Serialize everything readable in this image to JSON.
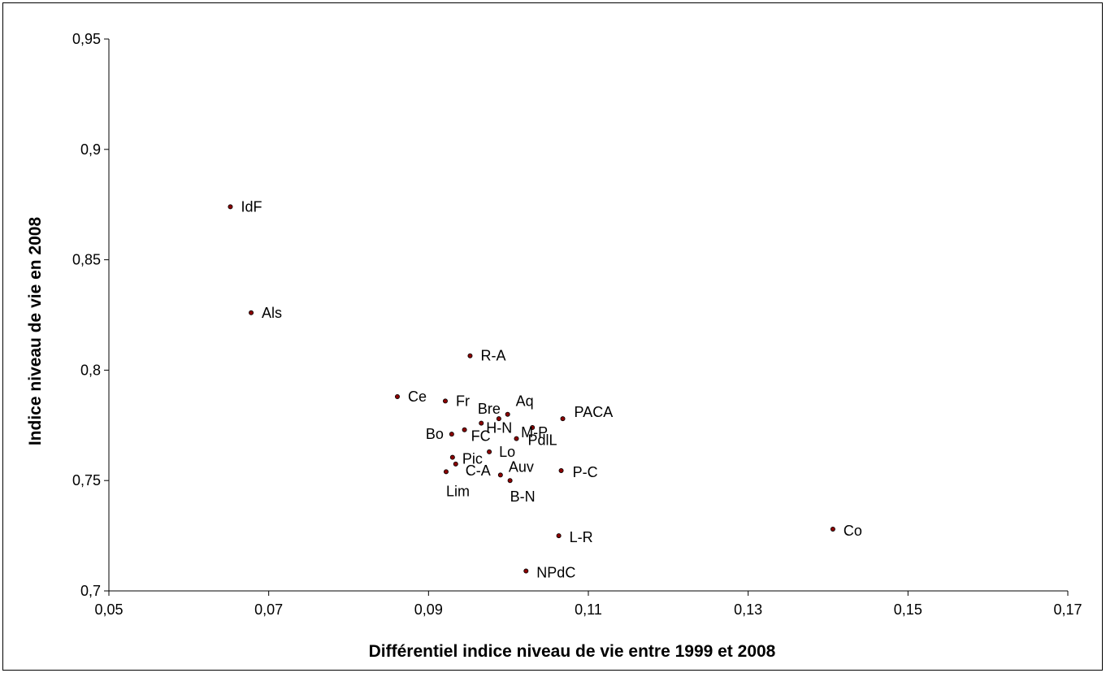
{
  "chart_data": {
    "type": "scatter",
    "title": "",
    "xlabel": "Différentiel indice niveau de vie entre 1999 et 2008",
    "ylabel": "Indice niveau de vie en 2008",
    "xlim": [
      0.05,
      0.17
    ],
    "ylim": [
      0.7,
      0.95
    ],
    "x_ticks": [
      0.05,
      0.07,
      0.09,
      0.11,
      0.13,
      0.15,
      0.17
    ],
    "x_tick_labels": [
      "0,05",
      "0,07",
      "0,09",
      "0,11",
      "0,13",
      "0,15",
      "0,17"
    ],
    "y_ticks": [
      0.7,
      0.75,
      0.8,
      0.85,
      0.9,
      0.95
    ],
    "y_tick_labels": [
      "0,7",
      "0,75",
      "0,8",
      "0,85",
      "0,9",
      "0,95"
    ],
    "grid": false,
    "legend": "none",
    "marker_color": "#8b0000",
    "points": [
      {
        "label": "IdF",
        "x": 0.0652,
        "y": 0.874
      },
      {
        "label": "Als",
        "x": 0.0678,
        "y": 0.826
      },
      {
        "label": "R-A",
        "x": 0.0952,
        "y": 0.8065
      },
      {
        "label": "Ce",
        "x": 0.0861,
        "y": 0.788
      },
      {
        "label": "Fr",
        "x": 0.0921,
        "y": 0.786
      },
      {
        "label": "Aq",
        "x": 0.0999,
        "y": 0.78
      },
      {
        "label": "Bre",
        "x": 0.0988,
        "y": 0.778
      },
      {
        "label": "PACA",
        "x": 0.1068,
        "y": 0.778
      },
      {
        "label": "H-N",
        "x": 0.0966,
        "y": 0.776
      },
      {
        "label": "M-P",
        "x": 0.103,
        "y": 0.774
      },
      {
        "label": "FC",
        "x": 0.0945,
        "y": 0.773
      },
      {
        "label": "Bo",
        "x": 0.0929,
        "y": 0.771
      },
      {
        "label": "PdlL",
        "x": 0.101,
        "y": 0.769
      },
      {
        "label": "Lo",
        "x": 0.0976,
        "y": 0.763
      },
      {
        "label": "Pic",
        "x": 0.093,
        "y": 0.7605
      },
      {
        "label": "C-A",
        "x": 0.0934,
        "y": 0.7575
      },
      {
        "label": "P-C",
        "x": 0.1066,
        "y": 0.7545
      },
      {
        "label": "Lim",
        "x": 0.0922,
        "y": 0.754
      },
      {
        "label": "Auv",
        "x": 0.099,
        "y": 0.7525
      },
      {
        "label": "B-N",
        "x": 0.1002,
        "y": 0.75
      },
      {
        "label": "Co",
        "x": 0.1406,
        "y": 0.728
      },
      {
        "label": "L-R",
        "x": 0.1063,
        "y": 0.725
      },
      {
        "label": "NPdC",
        "x": 0.1022,
        "y": 0.709
      }
    ]
  }
}
